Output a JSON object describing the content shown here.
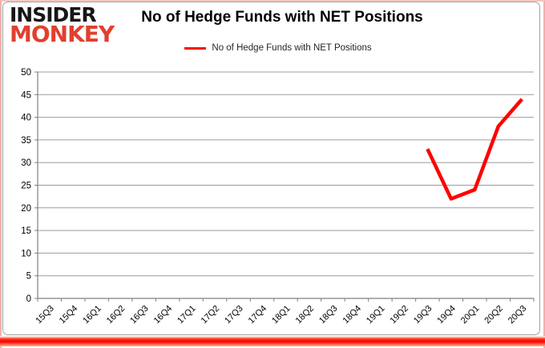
{
  "logo": {
    "line1": "INSIDER",
    "line2": "MONKEY",
    "color_line1": "#161616",
    "color_line2": "#e0402e"
  },
  "header": {
    "title": "No of Hedge Funds with NET Positions"
  },
  "legend": {
    "label": "No of Hedge Funds with NET Positions",
    "marker_color": "#ff0000"
  },
  "chart_data": {
    "type": "line",
    "title": "No of Hedge Funds with NET Positions",
    "categories": [
      "15Q3",
      "15Q4",
      "16Q1",
      "16Q2",
      "16Q3",
      "16Q4",
      "17Q1",
      "17Q2",
      "17Q3",
      "17Q4",
      "18Q1",
      "18Q2",
      "18Q3",
      "18Q4",
      "19Q1",
      "19Q2",
      "19Q3",
      "19Q4",
      "20Q1",
      "20Q2",
      "20Q3"
    ],
    "series": [
      {
        "name": "No of Hedge Funds with NET Positions",
        "color": "#ff0000",
        "values": [
          null,
          null,
          null,
          null,
          null,
          null,
          null,
          null,
          null,
          null,
          null,
          null,
          null,
          null,
          null,
          null,
          33,
          22,
          24,
          38,
          44
        ]
      }
    ],
    "ylim": [
      0,
      50
    ],
    "yticks": [
      0,
      5,
      10,
      15,
      20,
      25,
      30,
      35,
      40,
      45,
      50
    ],
    "xlabel": "",
    "ylabel": "",
    "grid": true,
    "legend_position": "top",
    "x_tick_rotation": -45
  },
  "frame": {
    "outer_border_pink": "#f2b0a9",
    "bottom_bar_red": "#fb0200",
    "chart_border_gray": "#a3a3a3",
    "gridline_gray": "#9c9c9c",
    "axis_gray": "#808080",
    "tick_label_color": "#000000"
  }
}
